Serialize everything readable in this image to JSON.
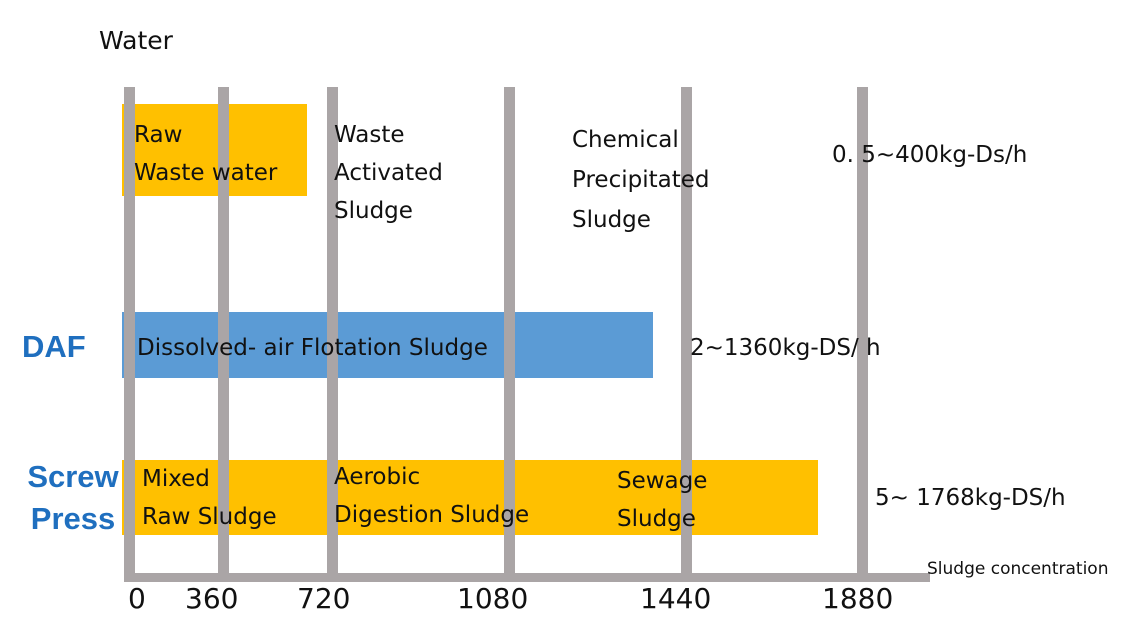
{
  "title": "Water",
  "axis": {
    "label": "Sludge concentration",
    "ticks": [
      "0",
      "360",
      "720",
      "1080",
      "1440",
      "1880"
    ]
  },
  "rows": [
    {
      "id": "water",
      "label": "",
      "color": "#ffc000",
      "sludges": [
        {
          "lines": [
            "Raw",
            "Waste water"
          ]
        },
        {
          "lines": [
            "Waste",
            "Activated",
            "Sludge"
          ]
        },
        {
          "lines": [
            "Chemical",
            "Precipitated",
            "Sludge"
          ]
        }
      ],
      "capacity": "0. 5~400kg-Ds/h"
    },
    {
      "id": "daf",
      "label": "DAF",
      "color": "#5b9bd5",
      "sludges": [
        {
          "lines": [
            "Dissolved- air Flotation Sludge"
          ]
        }
      ],
      "capacity": "2~1360kg-DS/ h"
    },
    {
      "id": "screw",
      "label": "Screw Press",
      "color": "#ffc000",
      "sludges": [
        {
          "lines": [
            "Mixed",
            "Raw Sludge"
          ]
        },
        {
          "lines": [
            "Aerobic",
            "Digestion Sludge"
          ]
        },
        {
          "lines": [
            "Sewage",
            "Sludge"
          ]
        }
      ],
      "capacity": "5~ 1768kg-DS/h"
    }
  ],
  "colors": {
    "gridline": "#aaa5a6",
    "label": "#1f6fbf"
  }
}
